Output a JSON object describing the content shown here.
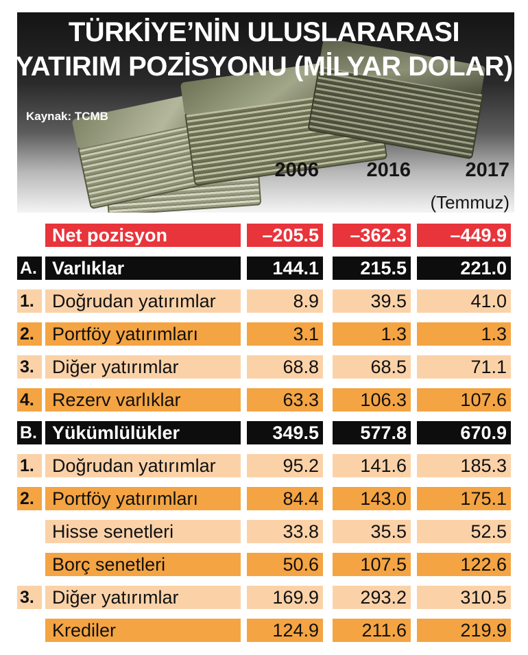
{
  "title_line1": "TÜRKİYE’NİN ULUSLARARASI",
  "title_line2": "YATIRIM POZİSYONU (MİLYAR DOLAR)",
  "source": "Kaynak: TCMB",
  "years": [
    "2006",
    "2016",
    "2017"
  ],
  "year_note": "(Temmuz)",
  "colors": {
    "red": "#e8343b",
    "black": "#0d0d0d",
    "orange": "#f4a443",
    "peach": "#fbd2a8"
  },
  "chart_data": {
    "type": "table",
    "title": "TÜRKİYE’NİN ULUSLARARASI YATIRIM POZİSYONU (MİLYAR DOLAR)",
    "columns": [
      "2006",
      "2016",
      "2017 (Temmuz)"
    ],
    "rows": [
      {
        "num": "",
        "label": "Net pozisyon",
        "values": [
          "–205.5",
          "–362.3",
          "–449.9"
        ],
        "style": "red"
      },
      {
        "num": "A.",
        "label": "Varlıklar",
        "values": [
          "144.1",
          "215.5",
          "221.0"
        ],
        "style": "black"
      },
      {
        "num": "1.",
        "label": "Doğrudan yatırımlar",
        "values": [
          "8.9",
          "39.5",
          "41.0"
        ],
        "style": "peach"
      },
      {
        "num": "2.",
        "label": "Portföy yatırımları",
        "values": [
          "3.1",
          "1.3",
          "1.3"
        ],
        "style": "orange"
      },
      {
        "num": "3.",
        "label": "Diğer yatırımlar",
        "values": [
          "68.8",
          "68.5",
          "71.1"
        ],
        "style": "peach"
      },
      {
        "num": "4.",
        "label": "Rezerv varlıklar",
        "values": [
          "63.3",
          "106.3",
          "107.6"
        ],
        "style": "orange"
      },
      {
        "num": "B.",
        "label": "Yükümlülükler",
        "values": [
          "349.5",
          "577.8",
          "670.9"
        ],
        "style": "black"
      },
      {
        "num": "1.",
        "label": "Doğrudan yatırımlar",
        "values": [
          "95.2",
          "141.6",
          "185.3"
        ],
        "style": "peach"
      },
      {
        "num": "2.",
        "label": "Portföy yatırımları",
        "values": [
          "84.4",
          "143.0",
          "175.1"
        ],
        "style": "orange"
      },
      {
        "num": "",
        "label": "Hisse senetleri",
        "values": [
          "33.8",
          "35.5",
          "52.5"
        ],
        "style": "peach"
      },
      {
        "num": "",
        "label": "Borç senetleri",
        "values": [
          "50.6",
          "107.5",
          "122.6"
        ],
        "style": "orange"
      },
      {
        "num": "3.",
        "label": "Diğer yatırımlar",
        "values": [
          "169.9",
          "293.2",
          "310.5"
        ],
        "style": "peach"
      },
      {
        "num": "",
        "label": "Krediler",
        "values": [
          "124.9",
          "211.6",
          "219.9"
        ],
        "style": "orange"
      }
    ]
  }
}
